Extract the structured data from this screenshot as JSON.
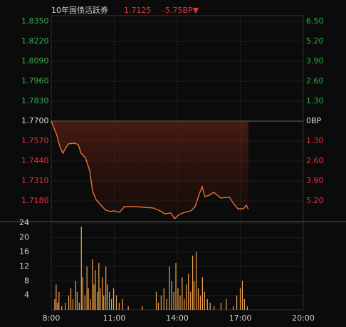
{
  "chart_data": [
    {
      "type": "line",
      "title": "10年国债活跃券",
      "last_price": "1.7125",
      "change": "-5.75BP▼",
      "color": "#e8703a",
      "up_color": "#2fb44a",
      "down_color": "#e8333a",
      "x": [
        "8:00",
        "8:08",
        "8:16",
        "8:24",
        "8:33",
        "8:41",
        "8:49",
        "9:07",
        "9:17",
        "9:25",
        "9:38",
        "9:50",
        "9:58",
        "10:08",
        "10:22",
        "10:35",
        "10:49",
        "10:59",
        "11:15",
        "11:29",
        "12:00",
        "12:51",
        "13:11",
        "13:25",
        "13:42",
        "13:52",
        "14:06",
        "14:22",
        "14:39",
        "14:51",
        "15:03",
        "15:11",
        "15:19",
        "15:32",
        "15:44",
        "16:04",
        "16:29",
        "16:41",
        "16:53",
        "17:09",
        "17:17",
        "17:23"
      ],
      "values": [
        1.77,
        1.7654,
        1.7607,
        1.7538,
        1.7491,
        1.7524,
        1.7552,
        1.7556,
        1.7547,
        1.7491,
        1.7459,
        1.7375,
        1.7245,
        1.7189,
        1.7152,
        1.712,
        1.7111,
        1.7115,
        1.7106,
        1.7143,
        1.7143,
        1.7134,
        1.7115,
        1.7096,
        1.7101,
        1.7064,
        1.7092,
        1.7106,
        1.7115,
        1.7143,
        1.7226,
        1.7273,
        1.7208,
        1.7217,
        1.7236,
        1.7199,
        1.7204,
        1.7161,
        1.7129,
        1.7129,
        1.7152,
        1.7125
      ],
      "xlim": [
        "8:00",
        "20:00"
      ],
      "xticks": [
        "8:00",
        "11:00",
        "14:00",
        "17:00",
        "20:00"
      ],
      "ylim": [
        1.705,
        1.835
      ],
      "yticks": [
        {
          "value": 1.835,
          "label": "1.8350"
        },
        {
          "value": 1.822,
          "label": "1.8220"
        },
        {
          "value": 1.809,
          "label": "1.8090"
        },
        {
          "value": 1.796,
          "label": "1.7960"
        },
        {
          "value": 1.783,
          "label": "1.7830"
        },
        {
          "value": 1.77,
          "label": "1.7700"
        },
        {
          "value": 1.757,
          "label": "1.7570"
        },
        {
          "value": 1.744,
          "label": "1.7440"
        },
        {
          "value": 1.731,
          "label": "1.7310"
        },
        {
          "value": 1.718,
          "label": "1.7180"
        }
      ],
      "y2lim": [
        -6.5,
        6.5
      ],
      "y2ticks": [
        {
          "value": 6.5,
          "label": "6.50"
        },
        {
          "value": 5.2,
          "label": "5.20"
        },
        {
          "value": 3.9,
          "label": "3.90"
        },
        {
          "value": 2.6,
          "label": "2.60"
        },
        {
          "value": 1.3,
          "label": "1.30"
        },
        {
          "value": 0,
          "label": "0BP"
        },
        {
          "value": -1.3,
          "label": "1.30"
        },
        {
          "value": -2.6,
          "label": "2.60"
        },
        {
          "value": -3.9,
          "label": "3.90"
        },
        {
          "value": -5.2,
          "label": "5.20"
        }
      ]
    },
    {
      "type": "bar",
      "color": "#f0a24a",
      "x": [
        "8:10",
        "8:14",
        "8:18",
        "8:22",
        "8:30",
        "8:40",
        "8:50",
        "8:56",
        "9:02",
        "9:10",
        "9:14",
        "9:20",
        "9:26",
        "9:30",
        "9:36",
        "9:42",
        "9:46",
        "9:52",
        "9:58",
        "10:02",
        "10:06",
        "10:12",
        "10:16",
        "10:20",
        "10:26",
        "10:30",
        "10:36",
        "10:40",
        "10:46",
        "10:52",
        "10:58",
        "11:06",
        "11:14",
        "11:24",
        "11:40",
        "12:20",
        "13:00",
        "13:06",
        "13:14",
        "13:22",
        "13:30",
        "13:38",
        "13:44",
        "13:50",
        "13:56",
        "14:02",
        "14:08",
        "14:14",
        "14:20",
        "14:26",
        "14:32",
        "14:38",
        "14:44",
        "14:48",
        "14:54",
        "15:00",
        "15:06",
        "15:12",
        "15:18",
        "15:26",
        "15:34",
        "15:45",
        "16:05",
        "16:20",
        "16:40",
        "16:50",
        "17:00",
        "17:06",
        "17:12",
        "17:20"
      ],
      "values": [
        3,
        7,
        2,
        5,
        1,
        2,
        4,
        6,
        3,
        8,
        5,
        2,
        23,
        9,
        4,
        12,
        6,
        3,
        14,
        7,
        11,
        5,
        13,
        6,
        9,
        4,
        12,
        7,
        5,
        3,
        6,
        4,
        2,
        3,
        1,
        1,
        5,
        2,
        4,
        6,
        3,
        12,
        8,
        5,
        13,
        6,
        4,
        9,
        3,
        7,
        10,
        5,
        15,
        8,
        16,
        6,
        4,
        9,
        5,
        3,
        2,
        1,
        2,
        3,
        1,
        4,
        6,
        8,
        3,
        1
      ],
      "xlim": [
        "8:00",
        "20:00"
      ],
      "ylim": [
        0,
        24
      ],
      "yticks": [
        4,
        8,
        12,
        16,
        20,
        24
      ]
    }
  ]
}
